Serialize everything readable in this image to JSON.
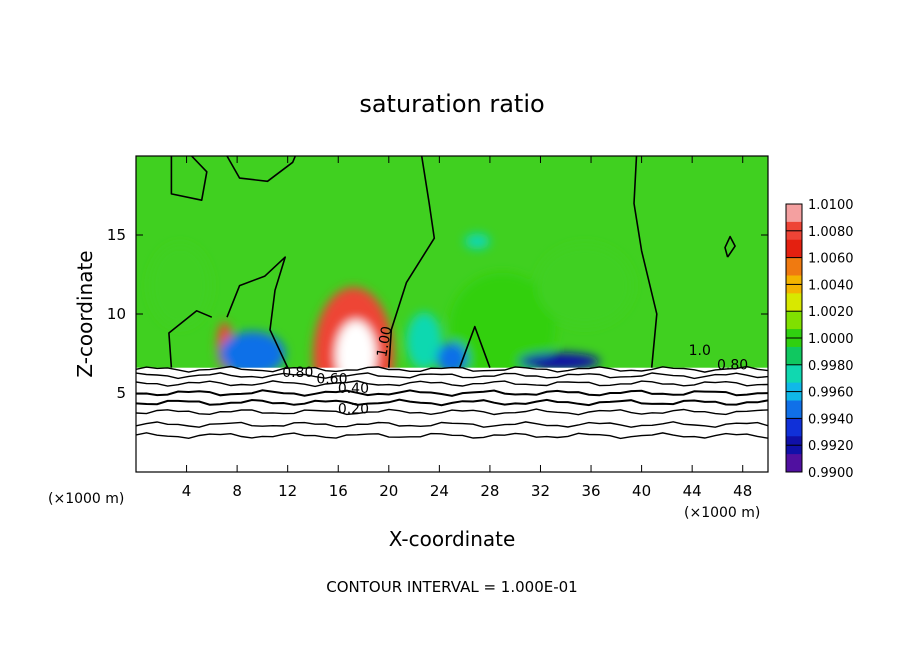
{
  "chart_data": {
    "type": "heatmap",
    "title": "saturation ratio",
    "xlabel": "X-coordinate",
    "ylabel": "Z-coordinate",
    "x_unit_left": "(×1000 m)",
    "x_unit_right": "(×1000 m)",
    "xlim": [
      0,
      50
    ],
    "ylim": [
      0,
      20
    ],
    "xticks": [
      4,
      8,
      12,
      16,
      20,
      24,
      28,
      32,
      36,
      40,
      44,
      48
    ],
    "yticks": [
      5,
      10,
      15
    ],
    "footnote": "CONTOUR INTERVAL = 1.000E-01",
    "colorbar": {
      "levels": [
        "1.0100",
        "1.0080",
        "1.0060",
        "1.0040",
        "1.0020",
        "1.0000",
        "0.9980",
        "0.9960",
        "0.9940",
        "0.9920",
        "0.9900"
      ],
      "colors": [
        "#f4a0a0",
        "#ee4436",
        "#e42010",
        "#f07a10",
        "#f4b400",
        "#d8e800",
        "#80e000",
        "#30d010",
        "#10c860",
        "#10d8b0",
        "#10b8e8",
        "#1070e8",
        "#1030d8",
        "#1010a8",
        "#5010a0"
      ]
    },
    "contour_labels": [
      {
        "text": "1.00",
        "x": 20.0,
        "z": 8.2
      },
      {
        "text": "0.80",
        "x": 12.8,
        "z": 6.0
      },
      {
        "text": "0.60",
        "x": 15.5,
        "z": 5.6
      },
      {
        "text": "0.40",
        "x": 17.2,
        "z": 5.0
      },
      {
        "text": "0.20",
        "x": 17.2,
        "z": 3.7
      },
      {
        "text": "1.0",
        "x": 44.6,
        "z": 7.4
      },
      {
        "text": "0.80",
        "x": 47.2,
        "z": 6.5
      }
    ],
    "features": {
      "background_value": 1.0,
      "blobs": [
        {
          "x": 17.2,
          "z": 7.3,
          "rx": 3.2,
          "rz": 4.4,
          "value": 1.0065,
          "note": "supersaturated plume"
        },
        {
          "x": 17.4,
          "z": 7.4,
          "rx": 1.6,
          "rz": 2.2,
          "value": 1.012
        },
        {
          "x": 7.0,
          "z": 8.0,
          "rx": 0.6,
          "rz": 1.5,
          "value": 1.007
        },
        {
          "x": 9.2,
          "z": 7.5,
          "rx": 2.6,
          "rz": 1.4,
          "value": 0.9935
        },
        {
          "x": 22.8,
          "z": 8.3,
          "rx": 1.4,
          "rz": 1.8,
          "value": 0.996
        },
        {
          "x": 29.0,
          "z": 9.2,
          "rx": 4.2,
          "rz": 3.4,
          "value": 0.9975
        },
        {
          "x": 33.5,
          "z": 7.0,
          "rx": 3.2,
          "rz": 0.55,
          "value": 0.9915
        },
        {
          "x": 25.0,
          "z": 7.2,
          "rx": 1.2,
          "rz": 1.0,
          "value": 0.9935
        },
        {
          "x": 35.5,
          "z": 11.8,
          "rx": 3.8,
          "rz": 2.6,
          "value": 0.9982
        },
        {
          "x": 3.5,
          "z": 11.8,
          "rx": 2.4,
          "rz": 2.6,
          "value": 0.9984
        },
        {
          "x": 27.0,
          "z": 14.6,
          "rx": 1.0,
          "rz": 0.5,
          "value": 0.9955
        }
      ],
      "cloud_free_top_z": 6.6
    }
  }
}
